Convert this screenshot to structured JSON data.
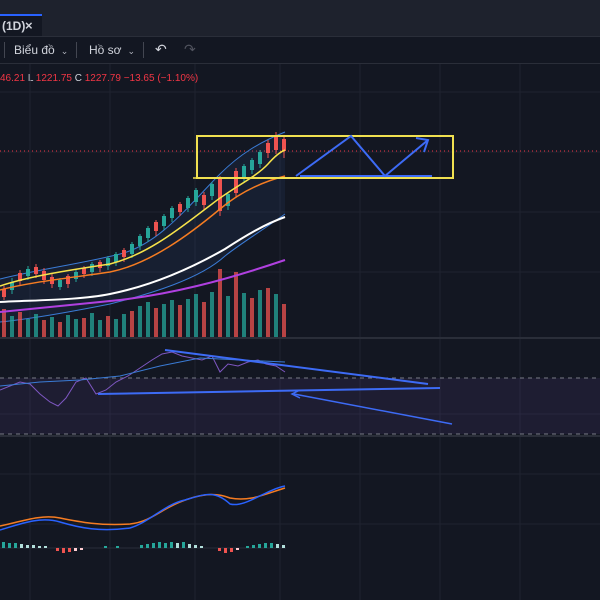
{
  "tab": {
    "label": "(1D)",
    "close_glyph": "×"
  },
  "toolbar": {
    "chart_menu": "Biểu đồ",
    "profile_menu": "Hồ sơ",
    "undo_icon": "undo-icon",
    "redo_icon": "redo-icon"
  },
  "legend": {
    "high_partial": "46.21",
    "low_label": "L",
    "low_value": "1221.75",
    "close_label": "C",
    "close_value": "1227.79",
    "change": "−13.65 (−1.10%)"
  },
  "colors": {
    "background": "#131722",
    "up_candle": "#26a69a",
    "down_candle": "#ef5350",
    "ma_white": "#ffffff",
    "ma_yellow": "#f7e34a",
    "ma_orange": "#f57c22",
    "ma_purple": "#b040e0",
    "bollinger": "#3a7bd5",
    "drawing_blue": "#3d6bf5",
    "highlight_box": "#f0e050",
    "price_line": "#f23645"
  }
}
